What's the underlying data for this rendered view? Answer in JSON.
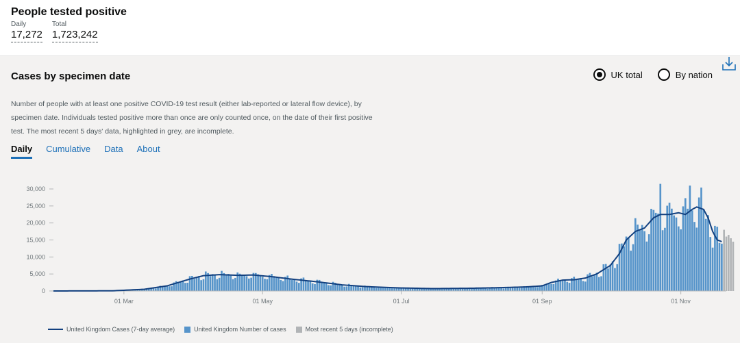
{
  "header": {
    "title": "People tested positive",
    "daily_label": "Daily",
    "daily_value": "17,272",
    "total_label": "Total",
    "total_value": "1,723,242"
  },
  "card": {
    "title": "Cases by specimen date",
    "radio_uk": "UK total",
    "radio_nation": "By nation",
    "selected": "UK total",
    "description": "Number of people with at least one positive COVID-19 test result (either lab-reported or lateral flow device), by specimen date. Individuals tested positive more than once are only counted once, on the date of their first positive test. The most recent 5 days' data, highlighted in grey, are incomplete.",
    "tabs": [
      {
        "label": "Daily",
        "active": true
      },
      {
        "label": "Cumulative",
        "active": false
      },
      {
        "label": "Data",
        "active": false
      },
      {
        "label": "About",
        "active": false
      }
    ]
  },
  "colors": {
    "bar": "#5694ca",
    "line": "#12407f",
    "incomplete": "#b1b4b6",
    "link": "#1d70b8"
  },
  "legend": {
    "avg": "United Kingdom Cases (7-day average)",
    "cases": "United Kingdom Number of cases",
    "recent": "Most recent 5 days (incomplete)"
  },
  "chart_data": {
    "type": "bar",
    "xlabel": "",
    "ylabel": "",
    "ylim": [
      0,
      30000
    ],
    "yticks": [
      "0",
      "5,000",
      "10,000",
      "15,000",
      "20,000",
      "25,000",
      "30,000"
    ],
    "xticks": [
      "01 Mar",
      "01 May",
      "01 Jul",
      "01 Sep",
      "01 Nov"
    ],
    "x_start": "2020-01-30",
    "x_end": "2020-11-21",
    "series": [
      {
        "name": "United Kingdom Number of cases",
        "type": "bar"
      },
      {
        "name": "United Kingdom Cases (7-day average)",
        "type": "line"
      },
      {
        "name": "Most recent 5 days (incomplete)",
        "type": "bar"
      }
    ],
    "avg_keypoints": [
      [
        "2020-01-30",
        0
      ],
      [
        "2020-02-25",
        50
      ],
      [
        "2020-03-10",
        500
      ],
      [
        "2020-03-20",
        1500
      ],
      [
        "2020-03-30",
        3500
      ],
      [
        "2020-04-05",
        4500
      ],
      [
        "2020-04-12",
        4800
      ],
      [
        "2020-04-20",
        4600
      ],
      [
        "2020-04-27",
        4700
      ],
      [
        "2020-05-05",
        4200
      ],
      [
        "2020-05-15",
        3400
      ],
      [
        "2020-05-25",
        2700
      ],
      [
        "2020-06-05",
        1800
      ],
      [
        "2020-06-15",
        1300
      ],
      [
        "2020-06-30",
        900
      ],
      [
        "2020-07-15",
        700
      ],
      [
        "2020-08-01",
        800
      ],
      [
        "2020-08-15",
        1000
      ],
      [
        "2020-08-25",
        1200
      ],
      [
        "2020-09-01",
        1500
      ],
      [
        "2020-09-05",
        2500
      ],
      [
        "2020-09-10",
        3200
      ],
      [
        "2020-09-15",
        3300
      ],
      [
        "2020-09-20",
        3800
      ],
      [
        "2020-09-25",
        5000
      ],
      [
        "2020-10-01",
        7500
      ],
      [
        "2020-10-05",
        11000
      ],
      [
        "2020-10-08",
        15000
      ],
      [
        "2020-10-12",
        17500
      ],
      [
        "2020-10-16",
        18500
      ],
      [
        "2020-10-20",
        21500
      ],
      [
        "2020-10-23",
        22500
      ],
      [
        "2020-10-27",
        22500
      ],
      [
        "2020-10-31",
        23000
      ],
      [
        "2020-11-03",
        22500
      ],
      [
        "2020-11-06",
        24000
      ],
      [
        "2020-11-08",
        24700
      ],
      [
        "2020-11-11",
        24000
      ],
      [
        "2020-11-13",
        21500
      ],
      [
        "2020-11-15",
        17500
      ],
      [
        "2020-11-17",
        15000
      ],
      [
        "2020-11-19",
        14500
      ]
    ],
    "recent_values": [
      18000,
      16000,
      16500,
      15500,
      14500
    ]
  }
}
